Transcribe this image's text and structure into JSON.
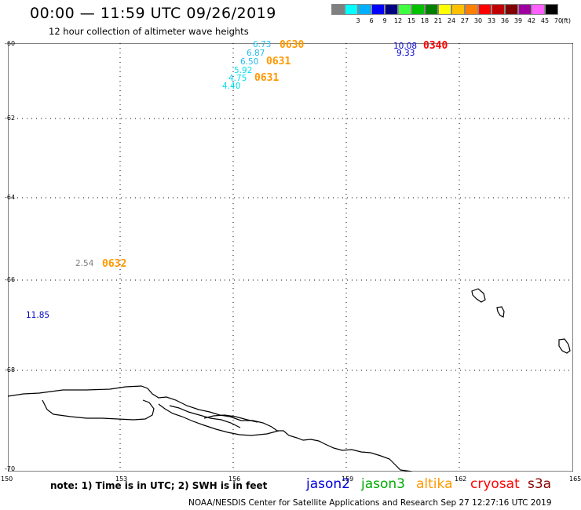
{
  "header": {
    "title": "00:00 — 11:59 UTC 09/26/2019",
    "subtitle": "12 hour collection of altimeter wave heights"
  },
  "legend": {
    "unit": "(ft)",
    "swatches": [
      {
        "color": "#808080",
        "label": ""
      },
      {
        "color": "#00ffff",
        "label": "3"
      },
      {
        "color": "#00b0ff",
        "label": "6"
      },
      {
        "color": "#0000ff",
        "label": "9"
      },
      {
        "color": "#000080",
        "label": "12"
      },
      {
        "color": "#40ff40",
        "label": "15"
      },
      {
        "color": "#00c000",
        "label": "18"
      },
      {
        "color": "#008000",
        "label": "21"
      },
      {
        "color": "#ffff00",
        "label": "24"
      },
      {
        "color": "#ffc000",
        "label": "27"
      },
      {
        "color": "#ff8000",
        "label": "30"
      },
      {
        "color": "#ff0000",
        "label": "33"
      },
      {
        "color": "#c00000",
        "label": "36"
      },
      {
        "color": "#800000",
        "label": "39"
      },
      {
        "color": "#a000a0",
        "label": "42"
      },
      {
        "color": "#ff60ff",
        "label": "45"
      },
      {
        "color": "#000000",
        "label": "70"
      }
    ]
  },
  "axes": {
    "lat_labels": [
      "-60",
      "-62",
      "-64",
      "-66",
      "-68",
      "-70"
    ],
    "lon_labels": [
      "150",
      "153",
      "156",
      "159",
      "162",
      "165"
    ]
  },
  "observations": [
    {
      "value": "6.73",
      "color": "#22bbee"
    },
    {
      "value": "6.87",
      "color": "#22bbee"
    },
    {
      "value": "6.50",
      "color": "#22bbee"
    },
    {
      "value": "5.92",
      "color": "#00e0f0"
    },
    {
      "value": "4.75",
      "color": "#00e0f0"
    },
    {
      "value": "4.40",
      "color": "#00e0f0"
    },
    {
      "value": "10.08",
      "color": "#0000cc"
    },
    {
      "value": "9.33",
      "color": "#0000cc"
    },
    {
      "value": "2.54",
      "color": "#808080"
    },
    {
      "value": "11.85",
      "color": "#0000cc"
    }
  ],
  "times": [
    {
      "value": "0630",
      "color": "#ff9900"
    },
    {
      "value": "0631",
      "color": "#ff9900"
    },
    {
      "value": "0631",
      "color": "#ff9900"
    },
    {
      "value": "0340",
      "color": "#ff0000"
    },
    {
      "value": "0632",
      "color": "#ff9900"
    }
  ],
  "note": "note: 1) Time is in UTC; 2) SWH is in feet",
  "satellites": [
    {
      "name": "jason2",
      "color": "#0000dd"
    },
    {
      "name": "jason3",
      "color": "#00aa00"
    },
    {
      "name": "altika",
      "color": "#ff9900"
    },
    {
      "name": "cryosat",
      "color": "#ff0000"
    },
    {
      "name": "s3a",
      "color": "#880000"
    }
  ],
  "footer": "NOAA/NESDIS Center for Satellite Applications and Research    Sep 27 12:27:16 UTC 2019"
}
